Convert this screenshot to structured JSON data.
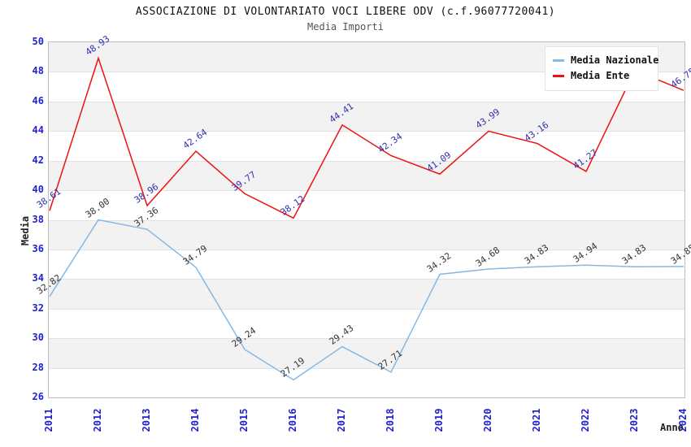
{
  "header": {
    "title": "ASSOCIAZIONE DI VOLONTARIATO VOCI LIBERE ODV (c.f.96077720041)",
    "subtitle": "Media Importi"
  },
  "axes": {
    "ylabel": "Media",
    "xlabel": "Anno"
  },
  "legend": {
    "items": [
      {
        "label": "Media Nazionale",
        "color": "#85b8e4"
      },
      {
        "label": "Media Ente",
        "color": "#ee1111"
      }
    ]
  },
  "style": {
    "band_color": "#f2f2f2",
    "grid_color": "#e2e2e2",
    "axis_text_color": "#2222cc",
    "plot_border_color": "#bdbdbd"
  },
  "chart_data": {
    "type": "line",
    "x": [
      "2011",
      "2012",
      "2013",
      "2014",
      "2015",
      "2016",
      "2017",
      "2018",
      "2019",
      "2020",
      "2021",
      "2022",
      "2023",
      "2024"
    ],
    "title": "ASSOCIAZIONE DI VOLONTARIATO VOCI LIBERE ODV (c.f.96077720041)",
    "subtitle": "Media Importi",
    "xlabel": "Anno",
    "ylabel": "Media",
    "ylim": [
      26,
      50
    ],
    "ytick_step": 2,
    "grid": true,
    "legend_position": "top-right",
    "series": [
      {
        "name": "Media Nazionale",
        "color": "#85b8e4",
        "label_color": "#333333",
        "values": [
          32.82,
          38.0,
          37.36,
          34.79,
          29.24,
          27.19,
          29.43,
          27.71,
          34.32,
          34.68,
          34.83,
          34.94,
          34.83,
          34.85
        ],
        "point_labels": [
          "32.82",
          "38.00",
          "37.36",
          "34.79",
          "29.24",
          "27.19",
          "29.43",
          "27.71",
          "34.32",
          "34.68",
          "34.83",
          "34.94",
          "34.83",
          "34.85"
        ]
      },
      {
        "name": "Media Ente",
        "color": "#ee1111",
        "label_color": "#2f2fae",
        "values": [
          38.61,
          48.93,
          38.96,
          42.64,
          39.77,
          38.12,
          44.41,
          42.34,
          41.09,
          43.99,
          43.16,
          41.27,
          48.1,
          46.75
        ],
        "point_labels": [
          "38.61",
          "48.93",
          "38.96",
          "42.64",
          "39.77",
          "38.12",
          "44.41",
          "42.34",
          "41.09",
          "43.99",
          "43.16",
          "41.27",
          null,
          "46.75"
        ]
      }
    ]
  }
}
